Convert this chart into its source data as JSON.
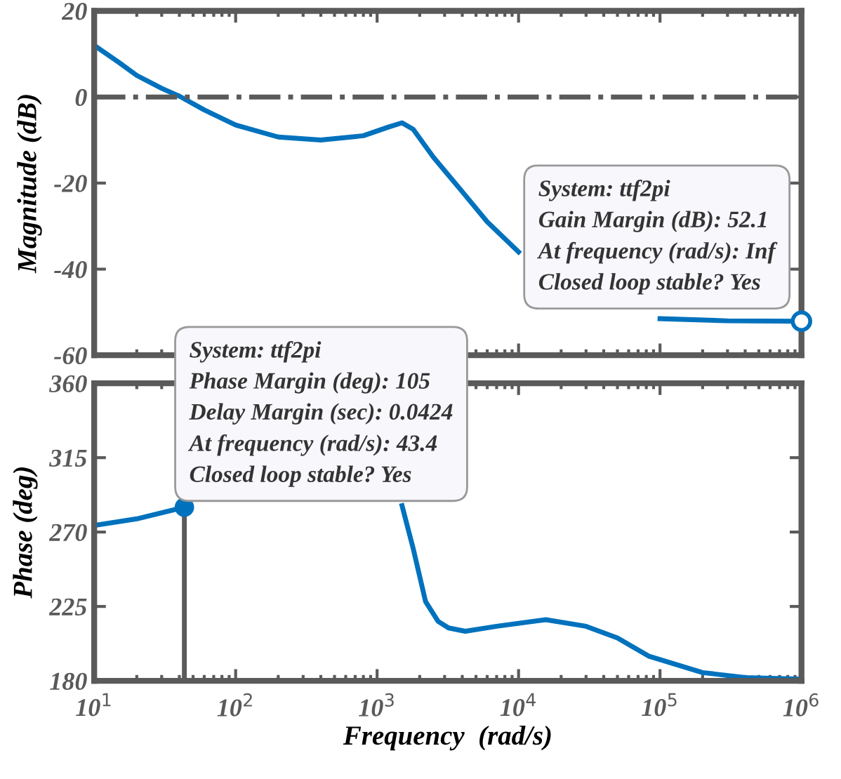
{
  "chart_data": [
    {
      "type": "line",
      "ylabel": "Magnitude (dB)",
      "log": "x",
      "grid": false,
      "legend": false,
      "tick_labels": "y",
      "marker": "none",
      "line_style": "solid",
      "xlim": [
        10,
        1000000
      ],
      "xticks": [
        {
          "value": 10,
          "label": null
        },
        {
          "value": 100,
          "label": null
        },
        {
          "value": 1000,
          "label": null
        },
        {
          "value": 10000,
          "label": null
        },
        {
          "value": 100000,
          "label": null
        },
        {
          "value": 1000000,
          "label": null
        }
      ],
      "ylim": [
        -60,
        20
      ],
      "yticks": [
        -60,
        -40,
        -20,
        0,
        20
      ],
      "x": [
        10,
        15,
        20,
        30,
        40,
        60,
        100,
        200,
        400,
        800,
        1200,
        1500,
        1800,
        2500,
        4000,
        6000,
        10000,
        15000,
        25000,
        50000,
        100000,
        300000,
        1000000
      ],
      "series": [
        {
          "color": "#0072bd",
          "values": [
            12,
            8,
            5,
            2,
            0.2,
            -3,
            -6.5,
            -9.3,
            -10,
            -9,
            -7,
            -6,
            -7.5,
            -14,
            -22,
            -29,
            -36,
            null,
            null,
            null,
            -51.5,
            -52,
            -52.1
          ]
        }
      ],
      "ref_lines": [
        {
          "axis": "y",
          "value": 0,
          "label": null,
          "color": "#5a5a5a",
          "line_style": "dashdot"
        }
      ],
      "annotations": [
        {
          "text": "System: ttf2pi\nGain Margin (dB): 52.1\nAt frequency (rad/s): Inf\nClosed loop stable? Yes",
          "x": 1000000,
          "y": -52.1
        }
      ]
    },
    {
      "type": "line",
      "ylabel": "Phase (deg)",
      "xlabel": "Frequency  (rad/s)",
      "log": "x",
      "grid": false,
      "legend": false,
      "marker": "none",
      "line_style": "solid",
      "xlim": [
        10,
        1000000
      ],
      "xticks": [
        {
          "value": 10,
          "label": "10$^{1}$"
        },
        {
          "value": 100,
          "label": "10$^{2}$"
        },
        {
          "value": 1000,
          "label": "10$^{3}$"
        },
        {
          "value": 10000,
          "label": "10$^{4}$"
        },
        {
          "value": 100000,
          "label": "10$^{5}$"
        },
        {
          "value": 1000000,
          "label": "10$^{6}$"
        }
      ],
      "ylim": [
        180,
        360
      ],
      "yticks": [
        180,
        225,
        270,
        315,
        360
      ],
      "x": [
        10,
        20,
        43.4,
        100,
        1000,
        1500,
        1800,
        2200,
        2700,
        3200,
        4200,
        7000,
        15600,
        30000,
        50000,
        83000,
        200000,
        400000,
        1000000
      ],
      "series": [
        {
          "color": "#0072bd",
          "values": [
            274,
            278,
            285,
            null,
            null,
            286,
            260,
            228,
            216,
            212,
            210,
            213,
            217,
            213,
            206,
            195,
            185,
            182,
            181
          ]
        }
      ],
      "ref_lines": [
        {
          "axis": "x",
          "value": 43.4,
          "label": null,
          "color": "#5a5a5a",
          "line_style": "solid"
        }
      ],
      "annotations": [
        {
          "text": "System: ttf2pi\nPhase Margin (deg): 105\nDelay Margin (sec): 0.0424\nAt frequency (rad/s): 43.4\nClosed loop stable? Yes",
          "x": 43.4,
          "y": 285
        }
      ]
    }
  ]
}
